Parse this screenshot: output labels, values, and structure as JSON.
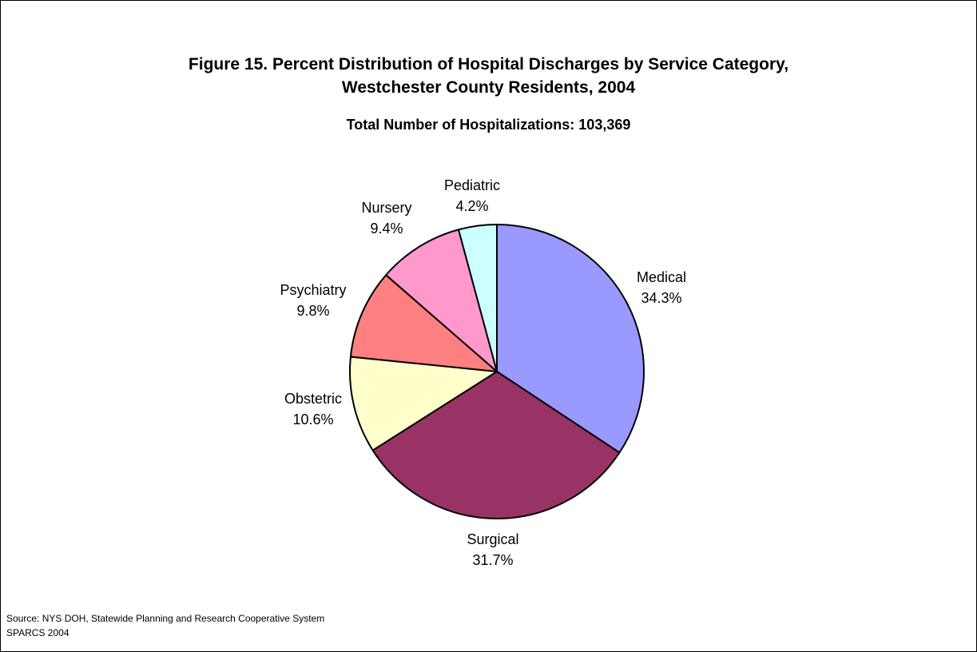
{
  "chart_data": {
    "type": "pie",
    "title": "Figure 15. Percent Distribution of Hospital Discharges by Service Category, Westchester County Residents, 2004",
    "title_lines": [
      "Figure 15. Percent Distribution of Hospital Discharges by Service Category,",
      "Westchester County Residents, 2004"
    ],
    "subtitle": "Total Number of Hospitalizations: 103,369",
    "slices": [
      {
        "name": "Medical",
        "value": 34.3,
        "label": "34.3%",
        "color": "#9999FF"
      },
      {
        "name": "Surgical",
        "value": 31.7,
        "label": "31.7%",
        "color": "#993366"
      },
      {
        "name": "Obstetric",
        "value": 10.6,
        "label": "10.6%",
        "color": "#FFFFCC"
      },
      {
        "name": "Psychiatry",
        "value": 9.8,
        "label": "9.8%",
        "color": "#FF8080"
      },
      {
        "name": "Nursery",
        "value": 9.4,
        "label": "9.4%",
        "color": "#FF99CC"
      },
      {
        "name": "Pediatric",
        "value": 4.2,
        "label": "4.2%",
        "color": "#CCFFFF"
      }
    ],
    "start_angle_deg": 0,
    "direction": "clockwise",
    "legend": "none",
    "labels": "outside"
  },
  "source": {
    "line1": "Source: NYS DOH, Statewide Planning and Research Cooperative System",
    "line2": "SPARCS 2004"
  }
}
